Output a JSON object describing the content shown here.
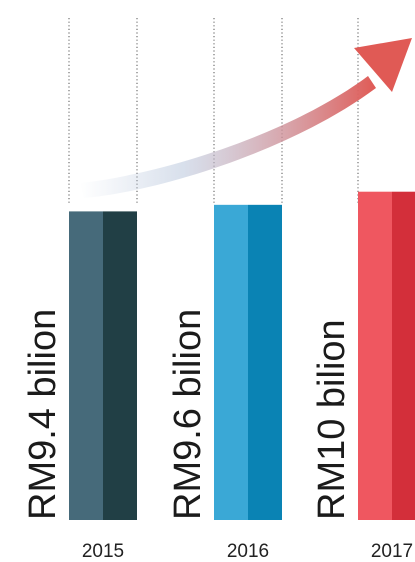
{
  "chart_data": {
    "type": "bar",
    "categories": [
      "2015",
      "2016",
      "2017"
    ],
    "values": [
      9.4,
      9.6,
      10
    ],
    "value_labels": [
      "RM9.4 bilion",
      "RM9.6 bilion",
      "RM10 bilion"
    ],
    "unit": "RM bilion",
    "title": "",
    "xlabel": "",
    "ylabel": "",
    "ylim": [
      0,
      10.6
    ],
    "grid": false,
    "trend_arrow": true,
    "colors": [
      {
        "light": "#466a7a",
        "dark": "#213f45"
      },
      {
        "light": "#3aa8d6",
        "dark": "#0a83b4"
      },
      {
        "light": "#ef5760",
        "dark": "#d32f3a"
      }
    ],
    "arrow_colors": {
      "start": "#b8c6dc",
      "end": "#e05a55"
    }
  }
}
